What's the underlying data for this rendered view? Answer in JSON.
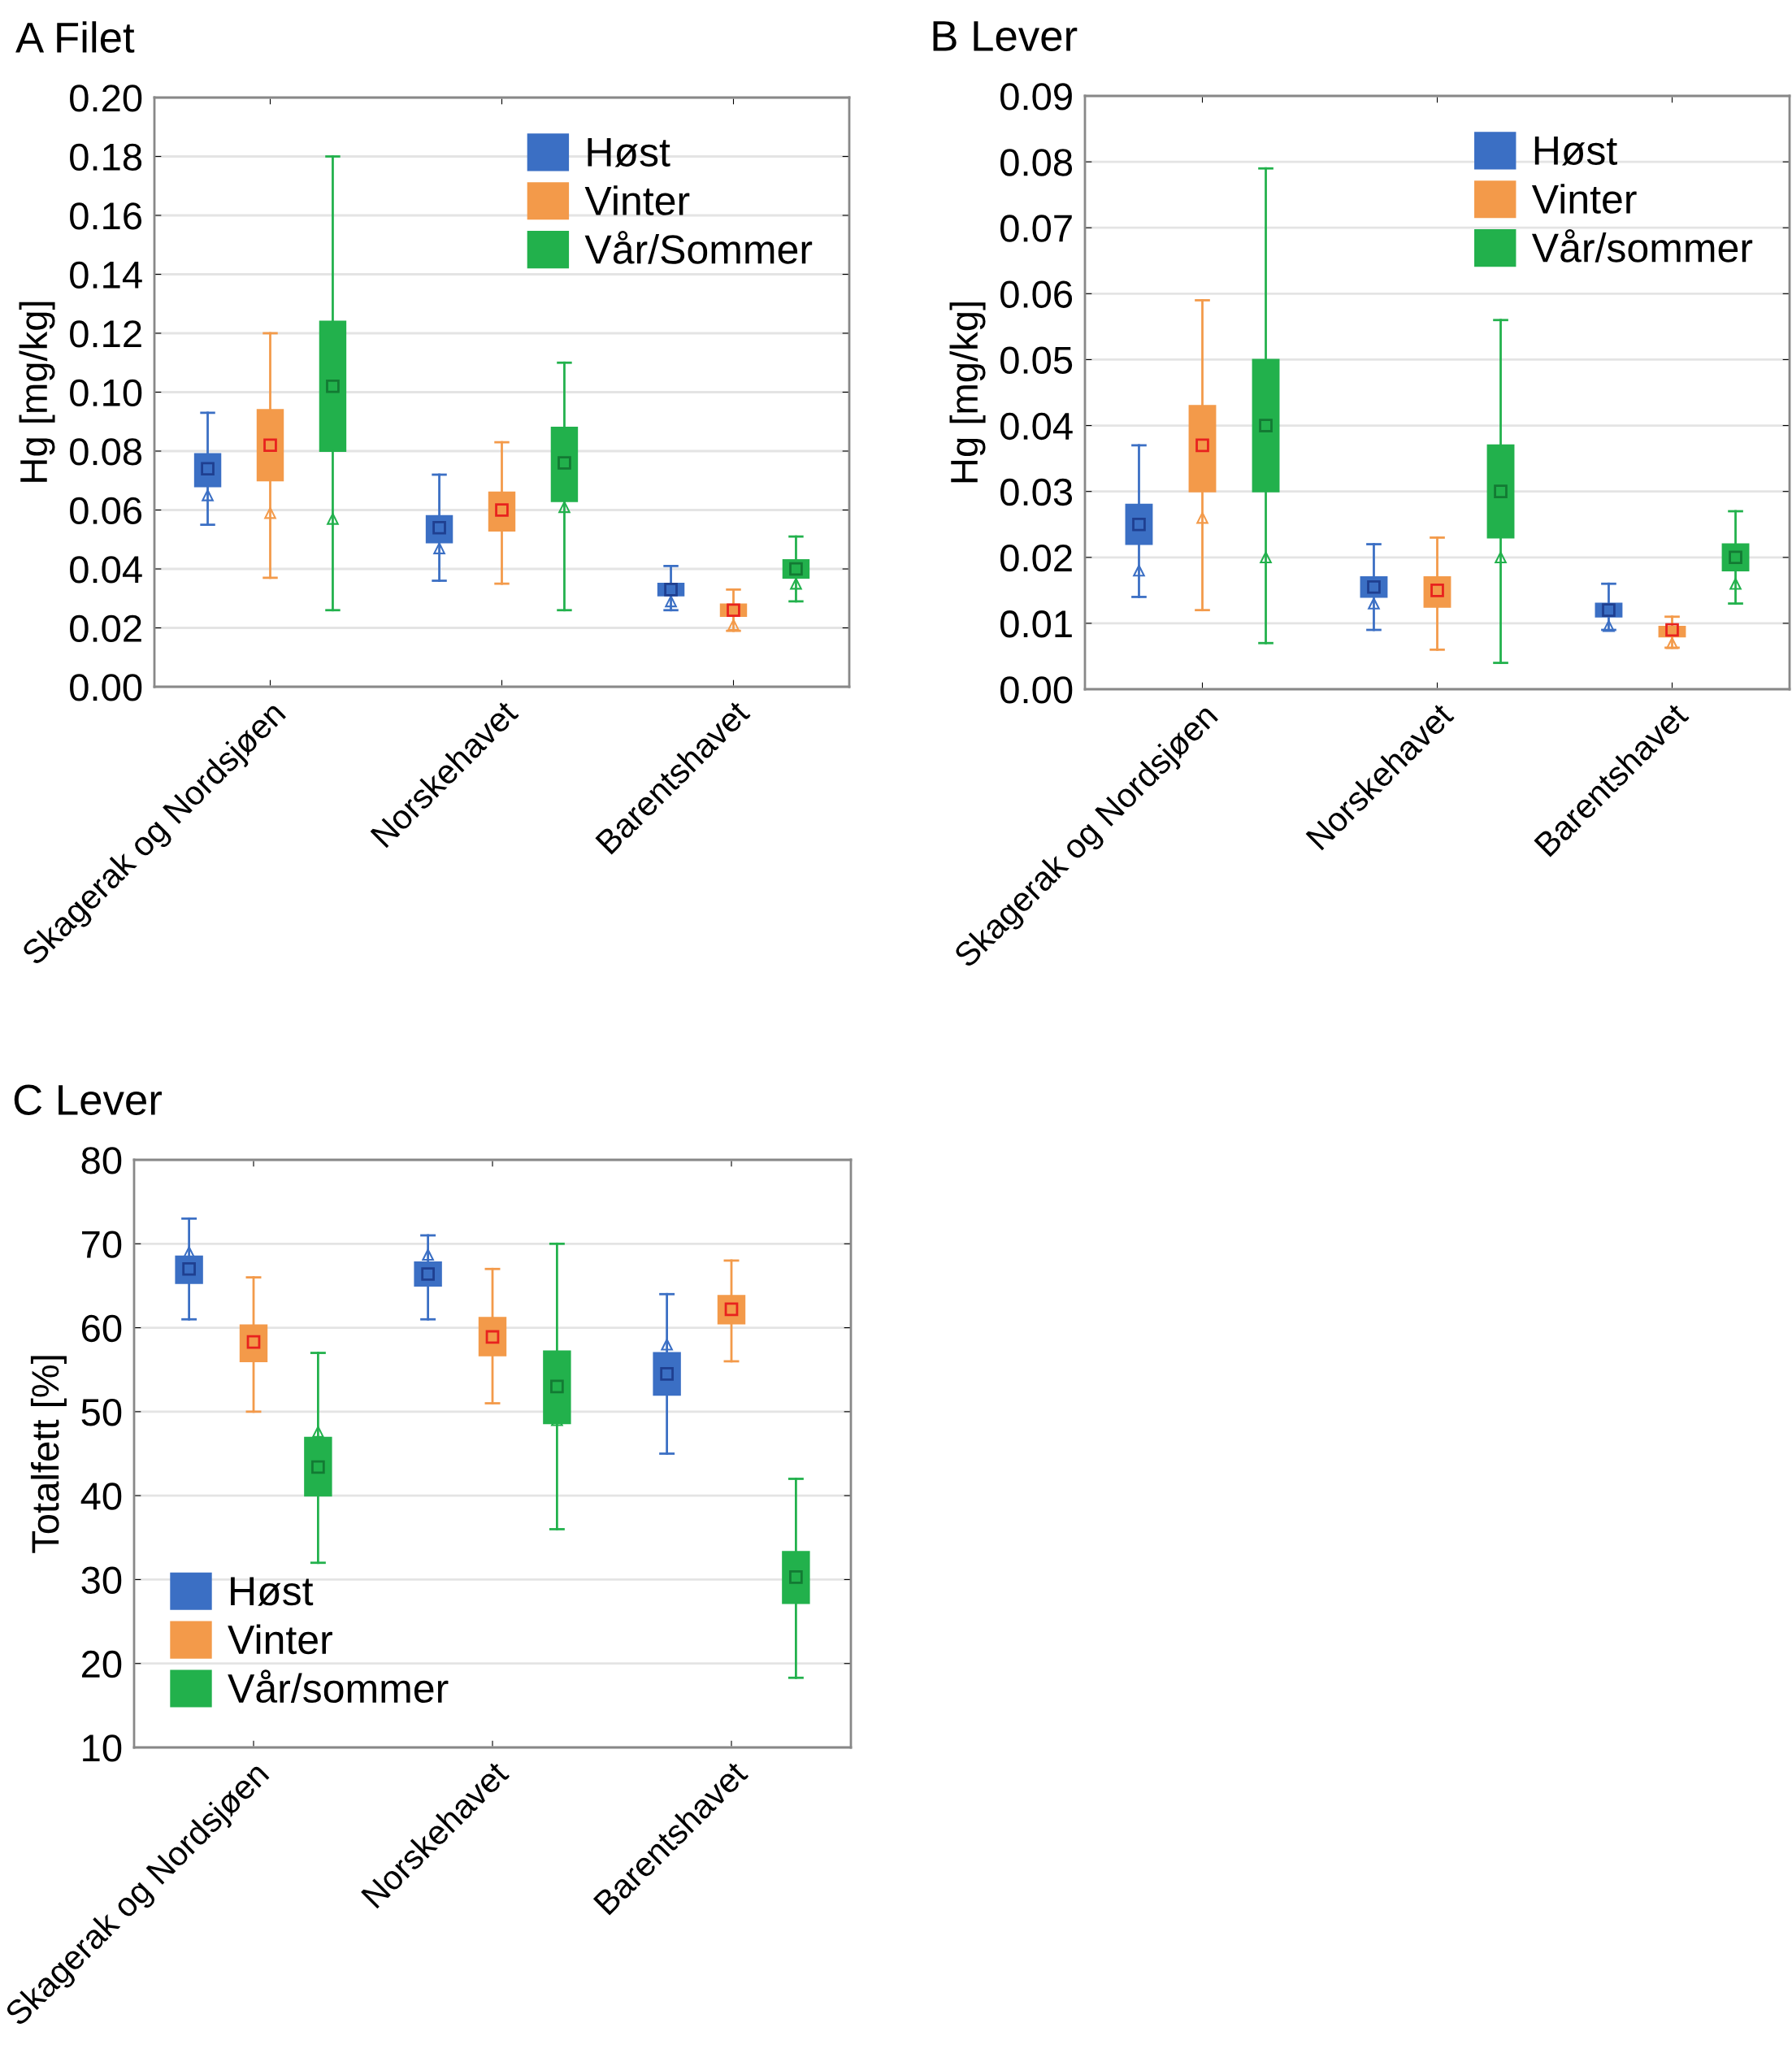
{
  "chart_data": [
    {
      "type": "box",
      "title": "A Filet",
      "ylabel": "Hg [mg/kg]",
      "categories": [
        "Skagerak og Nordsjøen",
        "Norskehavet",
        "Barentshavet"
      ],
      "ylim": [
        0,
        0.2
      ],
      "yticks": [
        {
          "value": 0,
          "label": "0.00"
        },
        {
          "value": 0.02,
          "label": "0.02"
        },
        {
          "value": 0.04,
          "label": "0.04"
        },
        {
          "value": 0.06,
          "label": "0.06"
        },
        {
          "value": 0.08,
          "label": "0.08"
        },
        {
          "value": 0.1,
          "label": "0.10"
        },
        {
          "value": 0.12,
          "label": "0.12"
        },
        {
          "value": 0.14,
          "label": "0.14"
        },
        {
          "value": 0.16,
          "label": "0.16"
        },
        {
          "value": 0.18,
          "label": "0.18"
        },
        {
          "value": 0.2,
          "label": "0.20"
        }
      ],
      "grid": "y",
      "legend": "top right",
      "series": [
        {
          "name": "Høst",
          "color": "#3b6fc4",
          "boxes": [
            {
              "low": 0.055,
              "q1": 0.068,
              "median": 0.065,
              "q3": 0.079,
              "high": 0.093,
              "mean": 0.074
            },
            {
              "low": 0.036,
              "q1": 0.049,
              "median": 0.047,
              "q3": 0.058,
              "high": 0.072,
              "mean": 0.054
            },
            {
              "low": 0.026,
              "q1": 0.031,
              "median": 0.029,
              "q3": 0.035,
              "high": 0.041,
              "mean": 0.033
            }
          ]
        },
        {
          "name": "Vinter",
          "color": "#f39a4a",
          "boxes": [
            {
              "low": 0.037,
              "q1": 0.07,
              "median": 0.059,
              "q3": 0.094,
              "high": 0.12,
              "mean": 0.082
            },
            {
              "low": 0.035,
              "q1": 0.053,
              "median": 0.055,
              "q3": 0.066,
              "high": 0.083,
              "mean": 0.06
            },
            {
              "low": 0.019,
              "q1": 0.024,
              "median": 0.021,
              "q3": 0.028,
              "high": 0.033,
              "mean": 0.026
            }
          ]
        },
        {
          "name": "Vår/Sommer",
          "color": "#22b14c",
          "boxes": [
            {
              "low": 0.026,
              "q1": 0.08,
              "median": 0.057,
              "q3": 0.124,
              "high": 0.18,
              "mean": 0.102
            },
            {
              "low": 0.026,
              "q1": 0.063,
              "median": 0.061,
              "q3": 0.088,
              "high": 0.11,
              "mean": 0.076
            },
            {
              "low": 0.029,
              "q1": 0.037,
              "median": 0.035,
              "q3": 0.043,
              "high": 0.051,
              "mean": 0.04
            }
          ]
        }
      ]
    },
    {
      "type": "box",
      "title": "B Lever",
      "ylabel": "Hg [mg/kg]",
      "categories": [
        "Skagerak og Nordsjøen",
        "Norskehavet",
        "Barentshavet"
      ],
      "ylim": [
        0,
        0.09
      ],
      "yticks": [
        {
          "value": 0,
          "label": "0.00"
        },
        {
          "value": 0.01,
          "label": "0.01"
        },
        {
          "value": 0.02,
          "label": "0.02"
        },
        {
          "value": 0.03,
          "label": "0.03"
        },
        {
          "value": 0.04,
          "label": "0.04"
        },
        {
          "value": 0.05,
          "label": "0.05"
        },
        {
          "value": 0.06,
          "label": "0.06"
        },
        {
          "value": 0.07,
          "label": "0.07"
        },
        {
          "value": 0.08,
          "label": "0.08"
        },
        {
          "value": 0.09,
          "label": "0.09"
        }
      ],
      "grid": "y",
      "legend": "top right",
      "series": [
        {
          "name": "Høst",
          "color": "#3b6fc4",
          "boxes": [
            {
              "low": 0.014,
              "q1": 0.022,
              "median": 0.018,
              "q3": 0.028,
              "high": 0.037,
              "mean": 0.025
            },
            {
              "low": 0.009,
              "q1": 0.014,
              "median": 0.013,
              "q3": 0.017,
              "high": 0.022,
              "mean": 0.0155
            },
            {
              "low": 0.009,
              "q1": 0.011,
              "median": 0.0096,
              "q3": 0.013,
              "high": 0.016,
              "mean": 0.012
            }
          ]
        },
        {
          "name": "Vinter",
          "color": "#f39a4a",
          "boxes": [
            {
              "low": 0.012,
              "q1": 0.03,
              "median": 0.026,
              "q3": 0.043,
              "high": 0.059,
              "mean": 0.037
            },
            {
              "low": 0.006,
              "q1": 0.0125,
              "median": 0.0135,
              "q3": 0.017,
              "high": 0.023,
              "mean": 0.015
            },
            {
              "low": 0.0063,
              "q1": 0.008,
              "median": 0.007,
              "q3": 0.0095,
              "high": 0.011,
              "mean": 0.009
            }
          ]
        },
        {
          "name": "Vår/sommer",
          "color": "#22b14c",
          "boxes": [
            {
              "low": 0.007,
              "q1": 0.03,
              "median": 0.02,
              "q3": 0.05,
              "high": 0.079,
              "mean": 0.04
            },
            {
              "low": 0.004,
              "q1": 0.023,
              "median": 0.02,
              "q3": 0.037,
              "high": 0.056,
              "mean": 0.03
            },
            {
              "low": 0.013,
              "q1": 0.018,
              "median": 0.016,
              "q3": 0.022,
              "high": 0.027,
              "mean": 0.02
            }
          ]
        }
      ]
    },
    {
      "type": "box",
      "title": "C Lever",
      "ylabel": "Totalfett [%]",
      "categories": [
        "Skagerak og Nordsjøen",
        "Norskehavet",
        "Barentshavet"
      ],
      "ylim": [
        10,
        80
      ],
      "yticks": [
        10,
        20,
        30,
        40,
        50,
        60,
        70,
        80
      ],
      "grid": "y",
      "legend": "bottom left",
      "series": [
        {
          "name": "Høst",
          "color": "#3b6fc4",
          "boxes": [
            {
              "low": 61,
              "q1": 65.3,
              "median": 69,
              "q3": 68.5,
              "high": 73,
              "mean": 67
            },
            {
              "low": 61,
              "q1": 65,
              "median": 68.7,
              "q3": 67.8,
              "high": 71,
              "mean": 66.4
            },
            {
              "low": 45,
              "q1": 52,
              "median": 58,
              "q3": 57,
              "high": 64,
              "mean": 54.5
            }
          ]
        },
        {
          "name": "Vinter",
          "color": "#f39a4a",
          "boxes": [
            {
              "low": 50,
              "q1": 56,
              "median": 58,
              "q3": 60.3,
              "high": 66,
              "mean": 58.3
            },
            {
              "low": 51,
              "q1": 56.7,
              "median": 59.4,
              "q3": 61.2,
              "high": 67,
              "mean": 58.9
            },
            {
              "low": 56,
              "q1": 60.5,
              "median": 62.5,
              "q3": 63.8,
              "high": 68,
              "mean": 62.2
            }
          ]
        },
        {
          "name": "Vår/sommer",
          "color": "#22b14c",
          "boxes": [
            {
              "low": 32,
              "q1": 40,
              "median": 47.6,
              "q3": 46.9,
              "high": 57,
              "mean": 43.4
            },
            {
              "low": 36,
              "q1": 48.6,
              "median": 49,
              "q3": 57.2,
              "high": 70,
              "mean": 53
            },
            {
              "low": 18.3,
              "q1": 27.2,
              "median": 29.8,
              "q3": 33.3,
              "high": 42,
              "mean": 30.3
            }
          ]
        }
      ]
    }
  ]
}
